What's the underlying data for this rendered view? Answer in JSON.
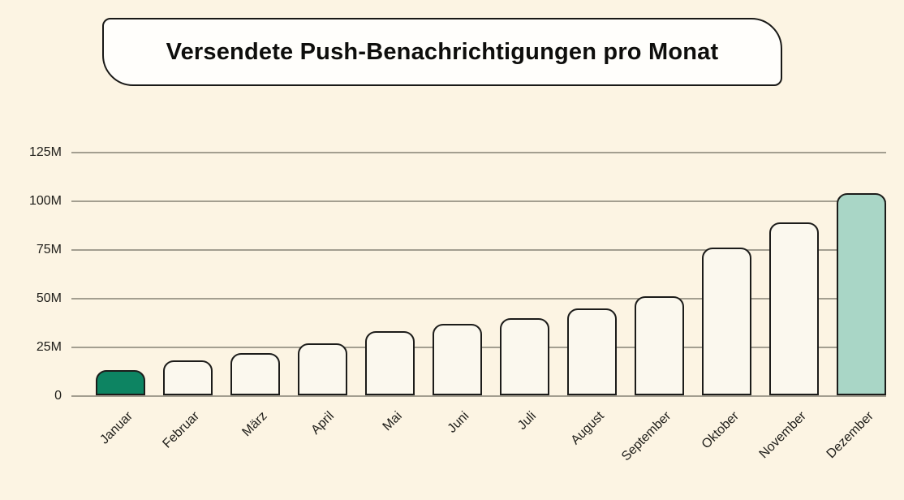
{
  "title_box": {
    "label": "Versendete Push-Benachrichtigungen pro Monat"
  },
  "colors": {
    "background": "#fcf4e3",
    "title_panel": "#fffefb",
    "bar_fill_default": "#fbf8ee",
    "bar_border": "#1c1c1a",
    "gridline": "#a39e90",
    "text": "#1e1d19",
    "accent_green_first_bar": "#0d8462",
    "accent_teal_last_bar": "#a9d6c6"
  },
  "chart_data": {
    "type": "bar",
    "title": "Versendete Push-Benachrichtigungen pro Monat",
    "categories": [
      "Januar",
      "Februar",
      "März",
      "April",
      "Mai",
      "Juni",
      "Juli",
      "August",
      "September",
      "Oktober",
      "November",
      "Dezember"
    ],
    "values": [
      13,
      18,
      22,
      27,
      33,
      37,
      40,
      45,
      51,
      76,
      89,
      104
    ],
    "unit": "Millionen (M)",
    "xlabel": "",
    "ylabel": "",
    "ylim": [
      0,
      125
    ],
    "yticks": [
      {
        "value": 0,
        "label": "0"
      },
      {
        "value": 25,
        "label": "25M"
      },
      {
        "value": 50,
        "label": "50M"
      },
      {
        "value": 75,
        "label": "75M"
      },
      {
        "value": 100,
        "label": "100M"
      },
      {
        "value": 125,
        "label": "125M"
      }
    ],
    "grid": true,
    "legend": false,
    "x_tick_rotation_deg": -45,
    "bar_colors": {
      "Januar": "#0d8462",
      "Dezember": "#a9d6c6",
      "default": "#fbf8ee"
    }
  }
}
